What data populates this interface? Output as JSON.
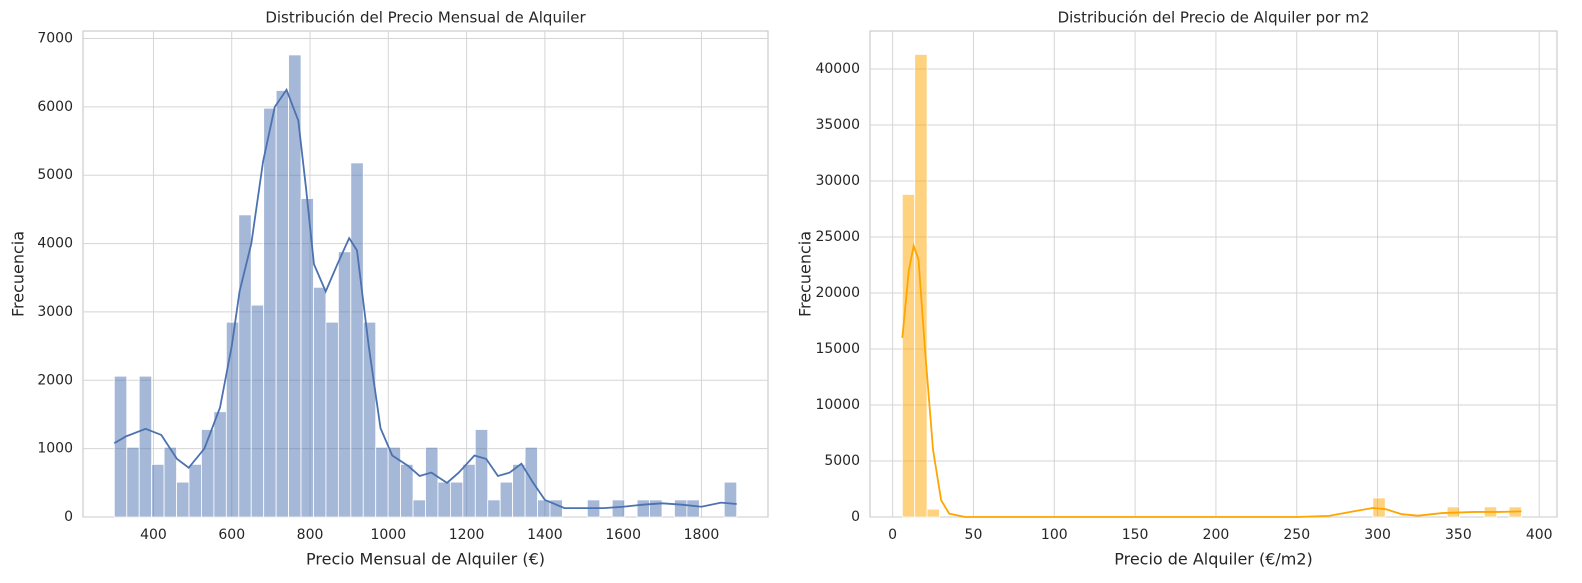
{
  "chart_data": [
    {
      "type": "histogram",
      "title": "Distribución del Precio Mensual de Alquiler",
      "x_label": "Precio Mensual de Alquiler (€)",
      "y_label": "Frecuencia",
      "color": "#4c72b0",
      "grid": true,
      "bins": [
        300,
        331.8,
        363.6,
        395.4,
        427.2,
        459,
        490.8,
        522.6,
        554.4,
        586.2,
        618,
        649.8,
        681.6,
        713.4,
        745.2,
        777,
        808.8,
        840.6,
        872.4,
        904.2,
        936,
        967.8,
        999.6,
        1031.4,
        1063.2,
        1095,
        1126.8,
        1158.6,
        1190.4,
        1222.2,
        1254,
        1285.8,
        1317.6,
        1349.4,
        1381.2,
        1413,
        1444.8,
        1476.6,
        1508.4,
        1540.2,
        1572,
        1603.8,
        1635.6,
        1667.4,
        1699.2,
        1731,
        1762.8,
        1794.6,
        1826.4,
        1858.2,
        1890
      ],
      "values": [
        2060,
        1020,
        2060,
        770,
        1020,
        510,
        770,
        1280,
        1540,
        2850,
        4420,
        3100,
        5980,
        6240,
        6760,
        4660,
        3360,
        2850,
        3880,
        5180,
        2850,
        1020,
        1020,
        770,
        250,
        1020,
        510,
        510,
        770,
        1280,
        250,
        510,
        770,
        1020,
        250,
        250,
        0,
        0,
        250,
        0,
        250,
        0,
        250,
        250,
        0,
        250,
        250,
        0,
        0,
        510
      ],
      "kde_x": [
        300,
        330,
        380,
        420,
        460,
        490,
        530,
        570,
        600,
        620,
        650,
        680,
        710,
        740,
        770,
        790,
        810,
        840,
        870,
        900,
        920,
        950,
        980,
        1010,
        1050,
        1080,
        1110,
        1150,
        1180,
        1220,
        1250,
        1280,
        1310,
        1340,
        1370,
        1400,
        1450,
        1500,
        1550,
        1600,
        1650,
        1700,
        1750,
        1800,
        1850,
        1890
      ],
      "kde_y": [
        1080,
        1180,
        1290,
        1200,
        850,
        720,
        1000,
        1600,
        2500,
        3300,
        4000,
        5200,
        6000,
        6250,
        5800,
        4800,
        3700,
        3300,
        3700,
        4080,
        3900,
        2500,
        1300,
        900,
        750,
        600,
        650,
        500,
        650,
        900,
        850,
        600,
        650,
        780,
        500,
        250,
        130,
        130,
        130,
        150,
        180,
        200,
        180,
        150,
        210,
        190
      ],
      "xlim": [
        220,
        1970
      ],
      "ylim": [
        0,
        7110
      ],
      "xticks": [
        400,
        600,
        800,
        1000,
        1200,
        1400,
        1600,
        1800
      ],
      "yticks": [
        0,
        1000,
        2000,
        3000,
        4000,
        5000,
        6000,
        7000
      ]
    },
    {
      "type": "histogram",
      "title": "Distribución del Precio de Alquiler por m2",
      "x_label": "Precio de Alquiler (€/m2)",
      "y_label": "Frecuencia",
      "color": "#ffa500",
      "grid": true,
      "bins": [
        6,
        13.66,
        21.32,
        28.98,
        36.64,
        44.3,
        51.96,
        59.62,
        67.28,
        74.94,
        82.6,
        90.26,
        97.92,
        105.58,
        113.24,
        120.9,
        128.56,
        136.22,
        143.88,
        151.54,
        159.2,
        166.86,
        174.52,
        182.18,
        189.84,
        197.5,
        205.16,
        212.82,
        220.48,
        228.14,
        235.8,
        243.46,
        251.12,
        258.78,
        266.44,
        274.1,
        281.76,
        289.42,
        297.08,
        304.74,
        312.4,
        320.06,
        327.72,
        335.38,
        343.04,
        350.7,
        358.36,
        366.02,
        373.68,
        381.34,
        389
      ],
      "values": [
        28800,
        41300,
        700,
        0,
        0,
        0,
        0,
        0,
        0,
        0,
        0,
        0,
        0,
        0,
        0,
        0,
        0,
        0,
        0,
        0,
        0,
        0,
        0,
        0,
        0,
        0,
        0,
        0,
        0,
        0,
        0,
        0,
        0,
        0,
        0,
        0,
        0,
        0,
        1700,
        0,
        0,
        0,
        0,
        0,
        900,
        0,
        0,
        900,
        0,
        900
      ],
      "kde_x": [
        6,
        10,
        13,
        16,
        20,
        25,
        30,
        35,
        45,
        100,
        250,
        270,
        285,
        297,
        305,
        315,
        325,
        340,
        360,
        375,
        389
      ],
      "kde_y": [
        16000,
        22000,
        24200,
        23000,
        15000,
        6000,
        1500,
        300,
        0,
        0,
        0,
        100,
        500,
        800,
        700,
        250,
        120,
        350,
        450,
        450,
        500
      ],
      "xlim": [
        -14,
        411
      ],
      "ylim": [
        0,
        43390
      ],
      "xticks": [
        0,
        50,
        100,
        150,
        200,
        250,
        300,
        350,
        400
      ],
      "yticks": [
        0,
        5000,
        10000,
        15000,
        20000,
        25000,
        30000,
        35000,
        40000
      ]
    }
  ]
}
